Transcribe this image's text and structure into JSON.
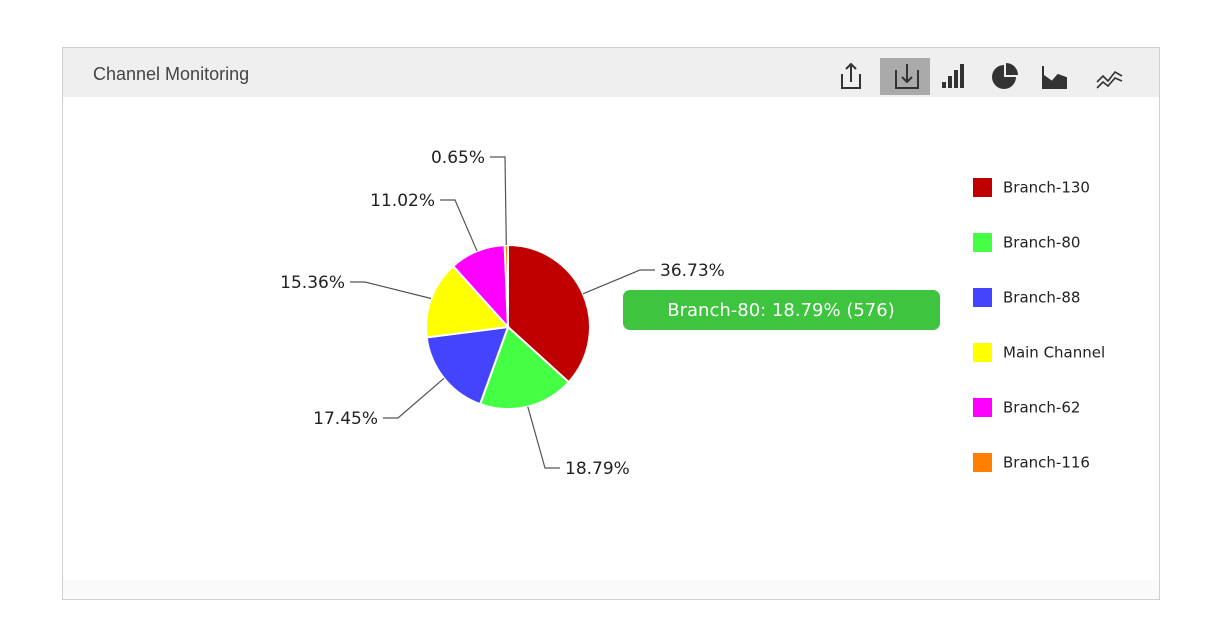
{
  "chart_data": {
    "type": "pie",
    "title": "Channel Monitoring",
    "categories": [
      "Branch-130",
      "Branch-80",
      "Branch-88",
      "Main Channel",
      "Branch-62",
      "Branch-116"
    ],
    "values": [
      36.73,
      18.79,
      17.45,
      15.36,
      11.02,
      0.65
    ],
    "value_labels": [
      "36.73%",
      "18.79%",
      "17.45%",
      "15.36%",
      "11.02%",
      "0.65%"
    ],
    "colors": [
      "#c00000",
      "#44ff44",
      "#4444ff",
      "#ffff00",
      "#ff00ff",
      "#ff8000"
    ],
    "tooltip": "Branch-80: 18.79% (576)"
  }
}
